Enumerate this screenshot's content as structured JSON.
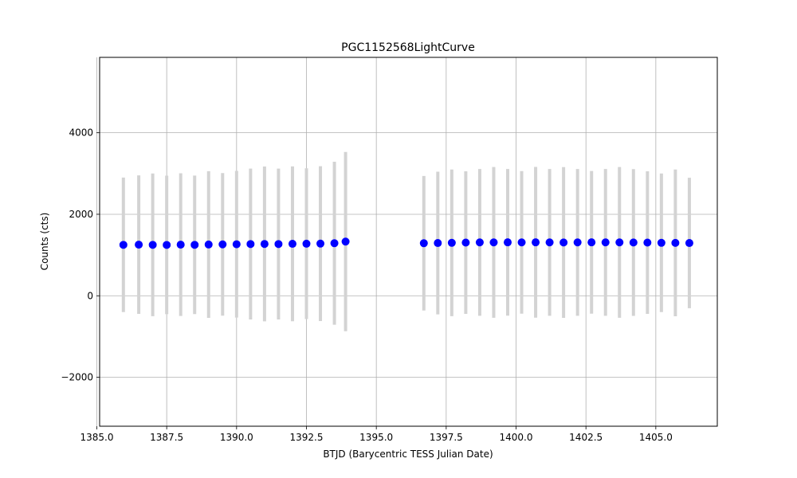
{
  "chart_data": {
    "type": "scatter",
    "title": "PGC1152568LightCurve",
    "xlabel": "BTJD (Barycentric TESS Julian Date)",
    "ylabel": "Counts (cts)",
    "xlim": [
      1385.1,
      1407.2
    ],
    "ylim": [
      -3200,
      5850
    ],
    "xticks": [
      1385.0,
      1387.5,
      1390.0,
      1392.5,
      1395.0,
      1397.5,
      1400.0,
      1402.5,
      1405.0
    ],
    "xtick_labels": [
      "1385.0",
      "1387.5",
      "1390.0",
      "1392.5",
      "1395.0",
      "1397.5",
      "1400.0",
      "1402.5",
      "1405.0"
    ],
    "yticks": [
      -2000,
      0,
      2000,
      4000
    ],
    "ytick_labels": [
      "−2000",
      "0",
      "2000",
      "4000"
    ],
    "grid": true,
    "marker_color": "#0000ff",
    "errorbar_color": "#d3d3d3",
    "segments": [
      {
        "x": [
          1385.95,
          1386.5,
          1387.0,
          1387.5,
          1388.0,
          1388.5,
          1389.0,
          1389.5,
          1390.0,
          1390.5,
          1391.0,
          1391.5,
          1392.0,
          1392.5,
          1393.0,
          1393.5,
          1393.9
        ],
        "y": [
          1250,
          1255,
          1250,
          1248,
          1255,
          1250,
          1258,
          1262,
          1265,
          1270,
          1272,
          1270,
          1275,
          1278,
          1280,
          1290,
          1330
        ],
        "err": [
          1650,
          1700,
          1750,
          1700,
          1750,
          1700,
          1800,
          1750,
          1800,
          1850,
          1900,
          1850,
          1900,
          1850,
          1900,
          2000,
          2200
        ]
      },
      {
        "x": [
          1396.7,
          1397.2,
          1397.7,
          1398.2,
          1398.7,
          1399.2,
          1399.7,
          1400.2,
          1400.7,
          1401.2,
          1401.7,
          1402.2,
          1402.7,
          1403.2,
          1403.7,
          1404.2,
          1404.7,
          1405.2,
          1405.7,
          1406.2
        ],
        "y": [
          1290,
          1295,
          1300,
          1305,
          1310,
          1310,
          1312,
          1310,
          1312,
          1310,
          1308,
          1310,
          1312,
          1310,
          1310,
          1308,
          1305,
          1300,
          1298,
          1295
        ],
        "err": [
          1650,
          1750,
          1800,
          1750,
          1800,
          1850,
          1800,
          1750,
          1850,
          1800,
          1850,
          1800,
          1750,
          1800,
          1850,
          1800,
          1750,
          1700,
          1800,
          1600
        ]
      }
    ]
  }
}
